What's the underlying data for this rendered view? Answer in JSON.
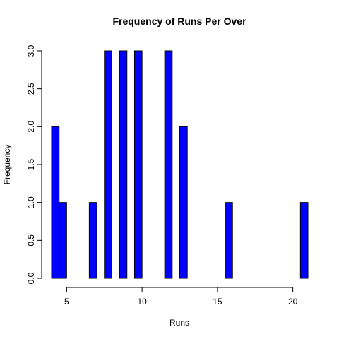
{
  "chart_data": {
    "type": "bar",
    "title": "Frequency of Runs Per Over",
    "xlabel": "Runs",
    "ylabel": "Frequency",
    "bar_color": "#0000ff",
    "bin_width": 1,
    "xlim": [
      4,
      21
    ],
    "ylim": [
      0,
      3
    ],
    "x_ticks": [
      5,
      10,
      15,
      20
    ],
    "y_ticks": [
      "0.0",
      "0.5",
      "1.0",
      "1.5",
      "2.0",
      "2.5",
      "3.0"
    ],
    "bins": [
      {
        "x": 4,
        "value": 2
      },
      {
        "x": 4.5,
        "value": 1
      },
      {
        "x": 6.5,
        "value": 1
      },
      {
        "x": 7.5,
        "value": 3
      },
      {
        "x": 8.5,
        "value": 3
      },
      {
        "x": 9.5,
        "value": 3
      },
      {
        "x": 11.5,
        "value": 3
      },
      {
        "x": 12.5,
        "value": 2
      },
      {
        "x": 15.5,
        "value": 1
      },
      {
        "x": 20.5,
        "value": 1
      }
    ]
  }
}
